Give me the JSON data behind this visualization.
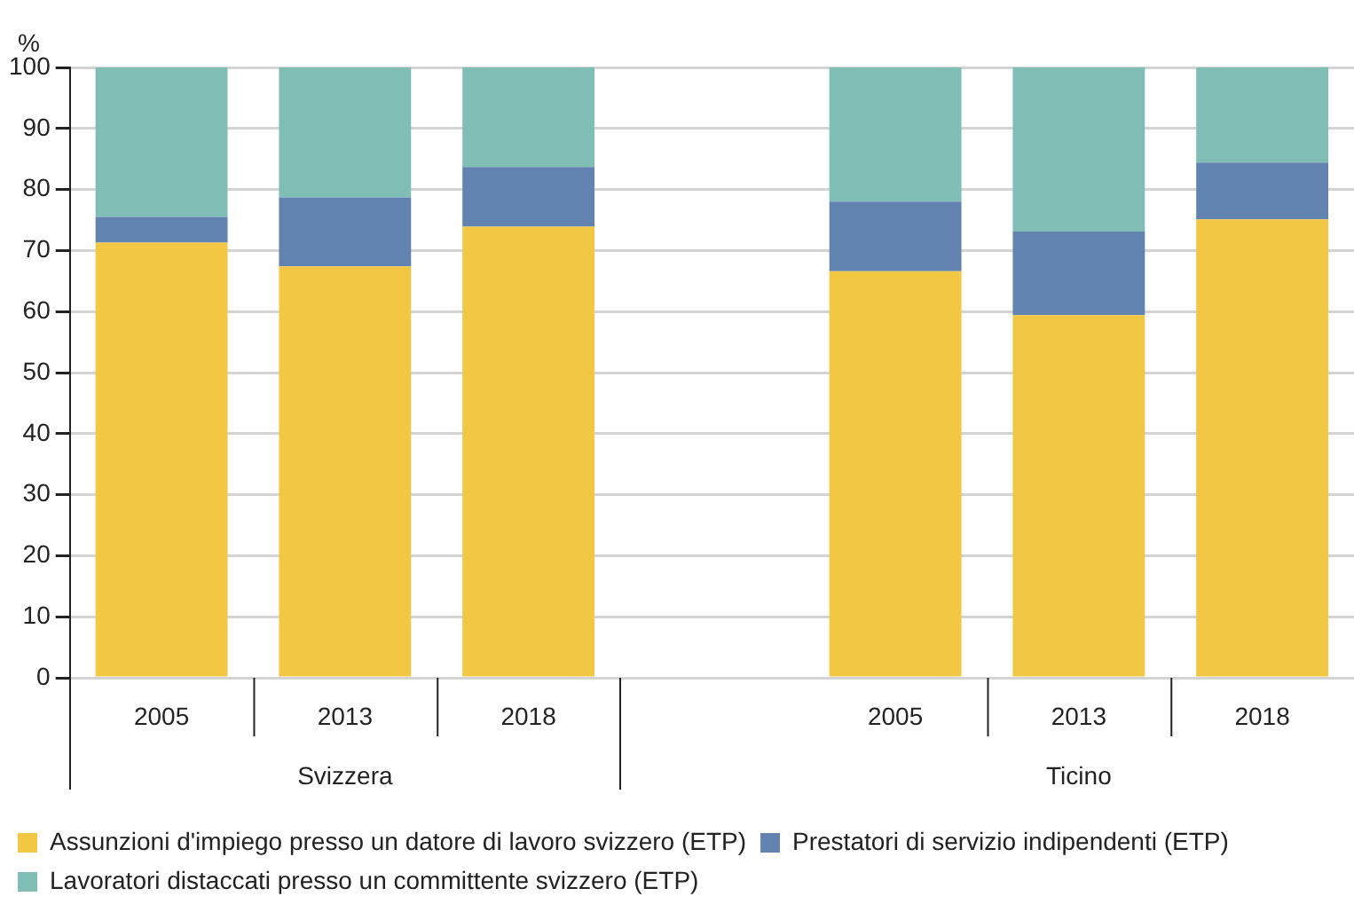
{
  "chart_data": {
    "type": "bar",
    "stacked": true,
    "ylabel": "%",
    "categories": [
      "2005",
      "2013",
      "2018",
      null,
      "2005",
      "2013",
      "2018"
    ],
    "series": [
      {
        "name": "Assunzioni d'impiego presso un datore di lavoro svizzero (ETP)",
        "color": "#f2c744",
        "values": [
          71.3,
          67.4,
          73.9,
          null,
          66.6,
          59.4,
          75.1
        ]
      },
      {
        "name": "Prestatori di servizio indipendenti (ETP)",
        "color": "#6283b0",
        "values": [
          4.2,
          11.3,
          9.8,
          null,
          11.4,
          13.7,
          9.3
        ]
      },
      {
        "name": "Lavoratori distaccati presso un committente svizzero (ETP)",
        "color": "#80beb5",
        "values": [
          24.5,
          21.3,
          16.3,
          null,
          22.0,
          26.9,
          15.6
        ]
      }
    ],
    "annotations": [
      "Svizzera",
      "Ticino"
    ],
    "ylim": [
      0,
      100
    ],
    "yticks": [
      0,
      10,
      20,
      30,
      40,
      50,
      60,
      70,
      80,
      90,
      100
    ],
    "grid": "y",
    "legend": "bottom"
  }
}
